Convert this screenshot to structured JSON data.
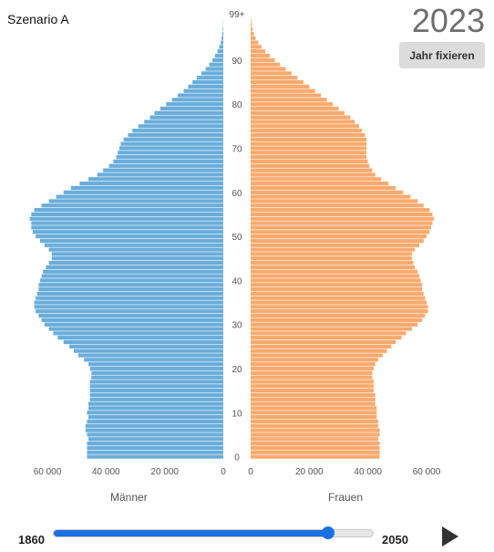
{
  "header": {
    "scenario": "Szenario A",
    "year": "2023",
    "fix_button": "Jahr fixieren"
  },
  "chart_data": {
    "type": "bar",
    "orientation": "horizontal-pyramid",
    "age_axis_labels": [
      "0",
      "10",
      "20",
      "30",
      "40",
      "50",
      "60",
      "70",
      "80",
      "90",
      "99+"
    ],
    "x_tick_labels_left": [
      "60 000",
      "40 000",
      "20 000",
      "0"
    ],
    "x_tick_labels_right": [
      "0",
      "20 000",
      "40 000",
      "60 000"
    ],
    "xlim": [
      0,
      62000
    ],
    "series": [
      {
        "name": "Männer",
        "color": "#6aaddb",
        "values": [
          46500,
          46500,
          46500,
          46500,
          46000,
          46500,
          47000,
          47000,
          46500,
          46000,
          46500,
          46000,
          46000,
          45500,
          45500,
          45500,
          45500,
          45500,
          45000,
          45000,
          45500,
          46000,
          47500,
          49500,
          51000,
          52500,
          54500,
          56500,
          58000,
          59500,
          61000,
          62000,
          63000,
          64000,
          64500,
          64500,
          64000,
          63500,
          63000,
          63000,
          62500,
          62000,
          61500,
          60500,
          59500,
          58500,
          58500,
          59500,
          61000,
          62500,
          64000,
          65000,
          65500,
          65500,
          66000,
          65500,
          64500,
          62000,
          59500,
          57000,
          54500,
          52000,
          49000,
          46000,
          43000,
          41000,
          39000,
          37500,
          36500,
          36000,
          35500,
          35000,
          34000,
          32500,
          31000,
          29000,
          27000,
          25000,
          23500,
          21500,
          19500,
          17500,
          15500,
          13500,
          12000,
          10500,
          9000,
          7500,
          6000,
          4800,
          3700,
          2800,
          2000,
          1400,
          900,
          600,
          350,
          200,
          100,
          50
        ]
      },
      {
        "name": "Frauen",
        "color": "#f9aa6e",
        "values": [
          44000,
          44000,
          44000,
          44000,
          43500,
          44000,
          44000,
          43500,
          43500,
          43000,
          43000,
          43000,
          42500,
          42500,
          42500,
          42000,
          42000,
          42000,
          41500,
          41500,
          42000,
          42500,
          43500,
          45000,
          46500,
          48000,
          49500,
          51500,
          53000,
          55000,
          57000,
          58500,
          59500,
          60500,
          60500,
          60000,
          59500,
          59000,
          58500,
          58500,
          58000,
          57500,
          57000,
          56000,
          55500,
          55000,
          55000,
          56000,
          57500,
          59000,
          60000,
          61000,
          61500,
          62000,
          62500,
          62000,
          61000,
          59000,
          57000,
          54500,
          52000,
          49500,
          47000,
          44500,
          42500,
          41500,
          40500,
          40000,
          39500,
          39500,
          39500,
          39500,
          39500,
          39000,
          38000,
          37000,
          35500,
          34000,
          32000,
          30000,
          28000,
          26000,
          24000,
          22000,
          20000,
          18000,
          16000,
          14000,
          12000,
          10000,
          8200,
          6500,
          5000,
          3700,
          2600,
          1700,
          1100,
          700,
          400,
          200
        ]
      }
    ],
    "xlabel_left": "Männer",
    "xlabel_right": "Frauen"
  },
  "slider": {
    "min_label": "1860",
    "max_label": "2050",
    "min": 1860,
    "max": 2050,
    "value": 2023,
    "track_color": "#1a6fe3"
  },
  "controls": {
    "play_icon": "play-icon"
  }
}
